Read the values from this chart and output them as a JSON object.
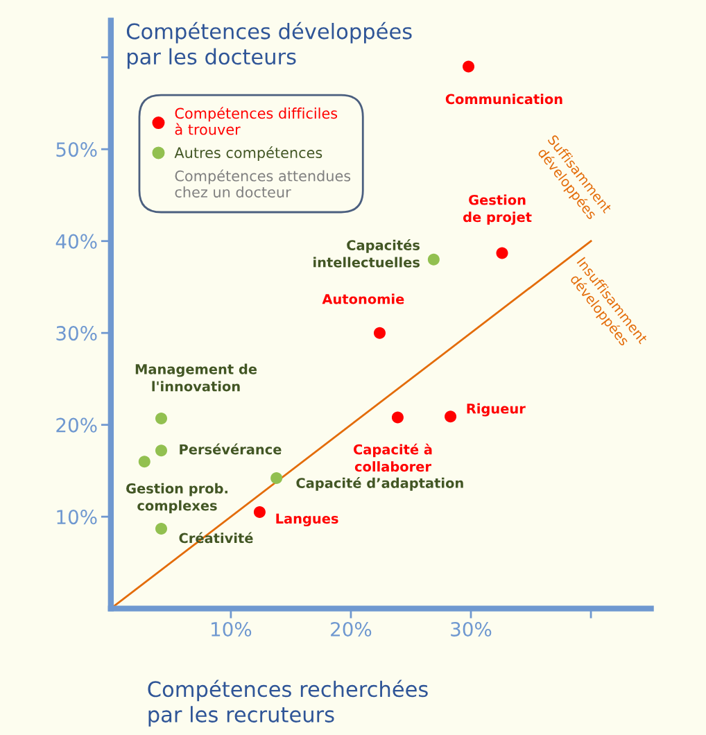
{
  "chart_data": {
    "type": "scatter",
    "ylabel": "Compétences développées\npar les docteurs",
    "xlabel": "Compétences recherchées\npar les recruteurs",
    "series": [
      {
        "name": "Compétences difficiles\nà trouver",
        "color": "#ff0000",
        "x": [
          29.8,
          32.6,
          22.4,
          23.9,
          28.3,
          12.4
        ],
        "values": [
          59,
          38.7,
          30,
          20.8,
          20.9,
          10.5
        ],
        "value_labels": [
          "Communication",
          "Gestion\nde projet",
          "Autonomie",
          "Capacité à\ncollaborer",
          "Rigueur",
          "Langues"
        ]
      },
      {
        "name": "Autres compétences",
        "color": "#92c050",
        "x": [
          26.9,
          13.8,
          4.2,
          4.2,
          2.8,
          4.2
        ],
        "values": [
          38.0,
          14.2,
          20.7,
          17.2,
          16.0,
          8.7
        ],
        "value_labels": [
          "Capacités\nintellectuelles",
          "Capacité d’adaptation",
          "Management de\nl'innovation",
          "Persévérance",
          "Gestion prob.\ncomplexes",
          "Créativité"
        ]
      },
      {
        "type": "line",
        "color": "#e36c0a",
        "x": [
          0,
          40
        ],
        "values": [
          0,
          40
        ],
        "marker": "none"
      }
    ],
    "annotations": [
      "Compétences attendues\nchez un docteur",
      "Suffisamment\ndéveloppées",
      "Insuffisamment\ndéveloppées"
    ],
    "xlim": [
      0,
      45
    ],
    "ylim": [
      0,
      64
    ],
    "xticks": [
      {
        "value": 10,
        "label": "10%"
      },
      {
        "value": 20,
        "label": "20%"
      },
      {
        "value": 30,
        "label": "30%"
      },
      {
        "value": 40,
        "label": null
      }
    ],
    "yticks": [
      {
        "value": 10,
        "label": "10%"
      },
      {
        "value": 20,
        "label": "20%"
      },
      {
        "value": 30,
        "label": "30%"
      },
      {
        "value": 40,
        "label": "40%"
      },
      {
        "value": 50,
        "label": "50%"
      },
      {
        "value": 60,
        "label": null
      }
    ],
    "marker": "circle",
    "legend": "top left",
    "grid": false
  }
}
